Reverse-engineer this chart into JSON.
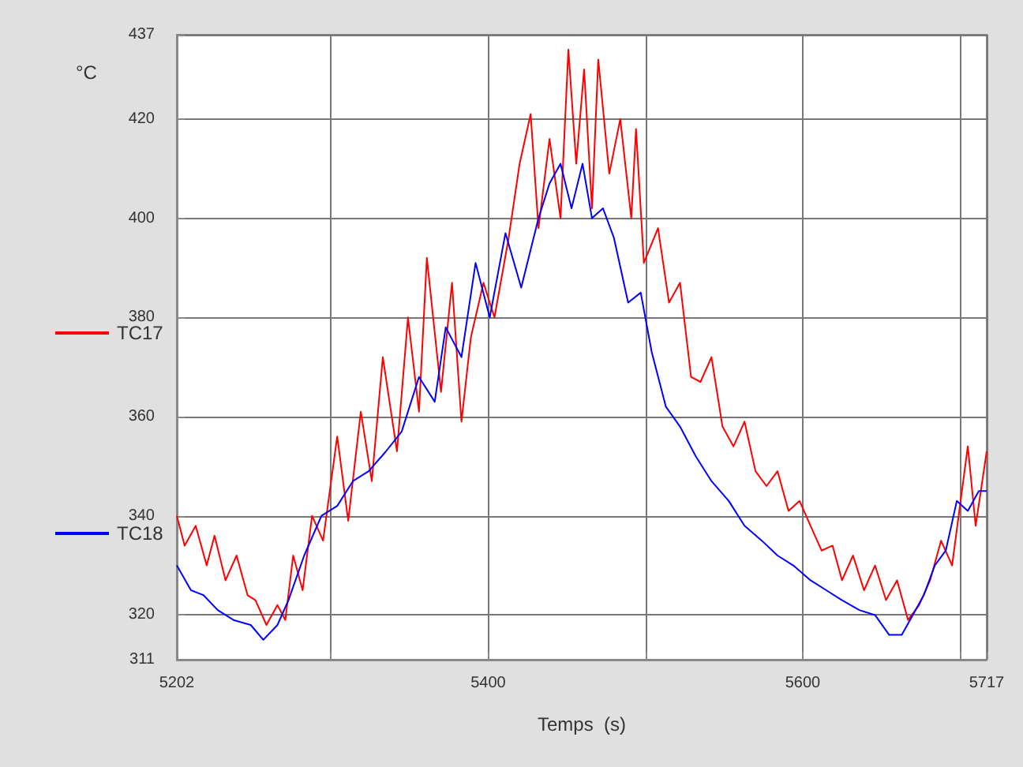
{
  "chart_data": {
    "type": "line",
    "xlabel": "Temps  (s)",
    "ylabel": "°C",
    "xlim": [
      5202,
      5717
    ],
    "xticks": [
      5202,
      {
        "value": 5300,
        "label": null
      },
      5400,
      {
        "value": 5500,
        "label": null
      },
      5600,
      {
        "value": 5700,
        "label": null
      },
      5717
    ],
    "ylim": [
      311,
      437
    ],
    "yticks": [
      311,
      320,
      340,
      360,
      380,
      400,
      420,
      437
    ],
    "grid": true,
    "legend": "left",
    "marker": "none",
    "line_style": "solid",
    "series": [
      {
        "name": "TC17",
        "color": "#ff0000",
        "x": [
          5202,
          5207,
          5214,
          5221,
          5226,
          5233,
          5240,
          5247,
          5252,
          5259,
          5266,
          5271,
          5276,
          5282,
          5288,
          5295,
          5304,
          5311,
          5319,
          5326,
          5333,
          5342,
          5349,
          5356,
          5361,
          5370,
          5377,
          5383,
          5389,
          5397,
          5404,
          5413,
          5420,
          5427,
          5432,
          5439,
          5446,
          5451,
          5456,
          5461,
          5466,
          5470,
          5477,
          5484,
          5491,
          5494,
          5499,
          5508,
          5515,
          5522,
          5529,
          5535,
          5542,
          5549,
          5556,
          5563,
          5570,
          5577,
          5584,
          5591,
          5598,
          5605,
          5612,
          5619,
          5625,
          5632,
          5639,
          5646,
          5653,
          5660,
          5667,
          5674,
          5681,
          5688,
          5695,
          5700,
          5705,
          5710,
          5717
        ],
        "values": [
          340,
          334,
          338,
          330,
          336,
          327,
          332,
          324,
          323,
          318,
          322,
          319,
          332,
          325,
          340,
          335,
          356,
          339,
          361,
          347,
          372,
          353,
          380,
          361,
          392,
          365,
          387,
          359,
          376,
          387,
          380,
          396,
          411,
          421,
          398,
          416,
          400,
          434,
          411,
          430,
          402,
          432,
          409,
          420,
          400,
          418,
          391,
          398,
          383,
          387,
          368,
          367,
          372,
          358,
          354,
          359,
          349,
          346,
          349,
          341,
          343,
          338,
          333,
          334,
          327,
          332,
          325,
          330,
          323,
          327,
          319,
          322,
          327,
          335,
          330,
          342,
          354,
          338,
          353
        ]
      },
      {
        "name": "TC18",
        "color": "#0000ff",
        "x": [
          5202,
          5211,
          5219,
          5228,
          5238,
          5249,
          5257,
          5266,
          5273,
          5283,
          5294,
          5304,
          5314,
          5324,
          5335,
          5345,
          5356,
          5366,
          5373,
          5383,
          5392,
          5401,
          5411,
          5421,
          5432,
          5439,
          5446,
          5453,
          5460,
          5466,
          5473,
          5480,
          5489,
          5497,
          5504,
          5513,
          5522,
          5532,
          5542,
          5553,
          5563,
          5574,
          5584,
          5594,
          5605,
          5615,
          5625,
          5636,
          5646,
          5655,
          5663,
          5670,
          5677,
          5684,
          5691,
          5698,
          5705,
          5712,
          5717
        ],
        "values": [
          330,
          325,
          324,
          321,
          319,
          318,
          315,
          318,
          323,
          332,
          340,
          342,
          347,
          349,
          353,
          357,
          368,
          363,
          378,
          372,
          391,
          380,
          397,
          386,
          400,
          407,
          411,
          402,
          411,
          400,
          402,
          396,
          383,
          385,
          373,
          362,
          358,
          352,
          347,
          343,
          338,
          335,
          332,
          330,
          327,
          325,
          323,
          321,
          320,
          316,
          316,
          320,
          324,
          330,
          333,
          343,
          341,
          345,
          345
        ]
      }
    ]
  }
}
